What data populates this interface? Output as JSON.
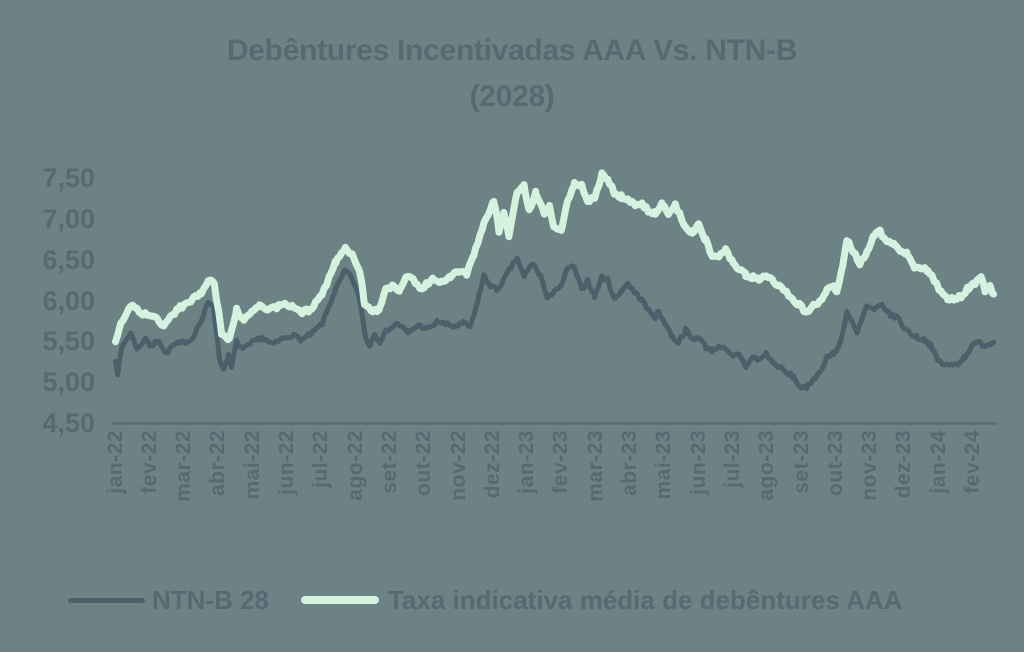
{
  "colors": {
    "background": "#6D8285",
    "text": "#576A74",
    "axis_line": "#5A6D76",
    "ntnb_line": "#4C5F6B",
    "aaa_line": "#D3F3DE"
  },
  "title": {
    "line1": "Debêntures Incentivadas AAA Vs. NTN-B",
    "line2": "(2028)"
  },
  "legend": {
    "items": [
      {
        "label": "NTN-B 28",
        "color": "#4C5F6B"
      },
      {
        "label": "Taxa indicativa média de debêntures AAA",
        "color": "#D3F3DE"
      }
    ]
  },
  "chart_data": {
    "type": "line",
    "title": "Debêntures Incentivadas AAA Vs. NTN-B (2028)",
    "xlabel": "",
    "ylabel": "",
    "grid": false,
    "legend_position": "bottom",
    "decimal_separator": ",",
    "ylim": [
      4.5,
      7.75
    ],
    "y_axis": {
      "ticks": [
        {
          "value": 7.5,
          "label": "7,50"
        },
        {
          "value": 7.0,
          "label": "7,00"
        },
        {
          "value": 6.5,
          "label": "6,50"
        },
        {
          "value": 6.0,
          "label": "6,00"
        },
        {
          "value": 5.5,
          "label": "5,50"
        },
        {
          "value": 5.0,
          "label": "5,00"
        },
        {
          "value": 4.5,
          "label": "4,50"
        }
      ]
    },
    "x_axis": {
      "tick_labels": [
        "jan-22",
        "fev-22",
        "mar-22",
        "abr-22",
        "mai-22",
        "jun-22",
        "jul-22",
        "ago-22",
        "set-22",
        "out-22",
        "nov-22",
        "dez-22",
        "jan-23",
        "fev-23",
        "mar-23",
        "abr-23",
        "mai-23",
        "jun-23",
        "jul-23",
        "ago-23",
        "set-23",
        "out-23",
        "nov-23",
        "dez-23",
        "jan-24",
        "fev-24"
      ]
    },
    "render": {
      "noise_amplitude": 0.025,
      "noise_seed": 7,
      "samples_per_month": 16
    },
    "series": [
      {
        "id": "ntnb",
        "name": "NTN-B 28",
        "color": "#4C5F6B",
        "width": 5,
        "points": [
          [
            0,
            5.28
          ],
          [
            0.06,
            5.11
          ],
          [
            0.2,
            5.45
          ],
          [
            0.44,
            5.6
          ],
          [
            0.65,
            5.4
          ],
          [
            0.88,
            5.55
          ],
          [
            1.03,
            5.43
          ],
          [
            1.26,
            5.52
          ],
          [
            1.47,
            5.35
          ],
          [
            1.68,
            5.45
          ],
          [
            1.91,
            5.48
          ],
          [
            2.2,
            5.52
          ],
          [
            2.5,
            5.75
          ],
          [
            2.7,
            5.97
          ],
          [
            2.85,
            5.95
          ],
          [
            3.03,
            5.3
          ],
          [
            3.15,
            5.15
          ],
          [
            3.29,
            5.33
          ],
          [
            3.38,
            5.18
          ],
          [
            3.53,
            5.49
          ],
          [
            3.73,
            5.4
          ],
          [
            3.97,
            5.48
          ],
          [
            4.26,
            5.55
          ],
          [
            4.56,
            5.46
          ],
          [
            4.85,
            5.53
          ],
          [
            5.15,
            5.58
          ],
          [
            5.44,
            5.52
          ],
          [
            5.74,
            5.6
          ],
          [
            6.03,
            5.72
          ],
          [
            6.41,
            6.13
          ],
          [
            6.7,
            6.37
          ],
          [
            6.9,
            6.27
          ],
          [
            7.12,
            6.01
          ],
          [
            7.29,
            5.55
          ],
          [
            7.41,
            5.45
          ],
          [
            7.56,
            5.6
          ],
          [
            7.7,
            5.5
          ],
          [
            7.94,
            5.65
          ],
          [
            8.24,
            5.72
          ],
          [
            8.53,
            5.6
          ],
          [
            8.82,
            5.7
          ],
          [
            9.12,
            5.65
          ],
          [
            9.41,
            5.75
          ],
          [
            9.56,
            5.72
          ],
          [
            9.85,
            5.68
          ],
          [
            10.15,
            5.72
          ],
          [
            10.35,
            5.68
          ],
          [
            10.44,
            5.8
          ],
          [
            10.59,
            6.05
          ],
          [
            10.74,
            6.3
          ],
          [
            10.94,
            6.18
          ],
          [
            11.12,
            6.13
          ],
          [
            11.32,
            6.25
          ],
          [
            11.47,
            6.37
          ],
          [
            11.71,
            6.52
          ],
          [
            11.91,
            6.29
          ],
          [
            12.15,
            6.46
          ],
          [
            12.41,
            6.29
          ],
          [
            12.59,
            6.01
          ],
          [
            12.79,
            6.13
          ],
          [
            13.0,
            6.17
          ],
          [
            13.18,
            6.41
          ],
          [
            13.38,
            6.4
          ],
          [
            13.59,
            6.13
          ],
          [
            13.76,
            6.25
          ],
          [
            13.97,
            6.05
          ],
          [
            14.18,
            6.29
          ],
          [
            14.35,
            6.25
          ],
          [
            14.56,
            6.01
          ],
          [
            14.76,
            6.13
          ],
          [
            14.94,
            6.21
          ],
          [
            15.15,
            6.09
          ],
          [
            15.35,
            6.01
          ],
          [
            15.53,
            5.88
          ],
          [
            15.74,
            5.8
          ],
          [
            15.83,
            5.86
          ],
          [
            16.03,
            5.72
          ],
          [
            16.24,
            5.55
          ],
          [
            16.41,
            5.49
          ],
          [
            16.62,
            5.64
          ],
          [
            16.82,
            5.52
          ],
          [
            17.0,
            5.56
          ],
          [
            17.21,
            5.43
          ],
          [
            17.41,
            5.39
          ],
          [
            17.59,
            5.45
          ],
          [
            17.79,
            5.39
          ],
          [
            18.0,
            5.31
          ],
          [
            18.18,
            5.35
          ],
          [
            18.38,
            5.19
          ],
          [
            18.59,
            5.31
          ],
          [
            18.76,
            5.27
          ],
          [
            18.97,
            5.35
          ],
          [
            19.18,
            5.23
          ],
          [
            19.35,
            5.19
          ],
          [
            19.56,
            5.11
          ],
          [
            19.76,
            5.07
          ],
          [
            19.94,
            4.95
          ],
          [
            20.15,
            4.92
          ],
          [
            20.35,
            5.05
          ],
          [
            20.53,
            5.11
          ],
          [
            20.74,
            5.31
          ],
          [
            20.94,
            5.35
          ],
          [
            21.03,
            5.38
          ],
          [
            21.2,
            5.6
          ],
          [
            21.32,
            5.86
          ],
          [
            21.62,
            5.6
          ],
          [
            21.9,
            5.93
          ],
          [
            22.12,
            5.88
          ],
          [
            22.35,
            5.95
          ],
          [
            22.59,
            5.82
          ],
          [
            22.79,
            5.8
          ],
          [
            23.0,
            5.66
          ],
          [
            23.18,
            5.6
          ],
          [
            23.38,
            5.55
          ],
          [
            23.59,
            5.52
          ],
          [
            23.76,
            5.45
          ],
          [
            23.97,
            5.27
          ],
          [
            24.18,
            5.21
          ],
          [
            24.35,
            5.21
          ],
          [
            24.56,
            5.23
          ],
          [
            24.76,
            5.31
          ],
          [
            24.94,
            5.43
          ],
          [
            25.15,
            5.49
          ],
          [
            25.35,
            5.45
          ],
          [
            25.5,
            5.47
          ],
          [
            25.6,
            5.49
          ]
        ]
      },
      {
        "id": "aaa",
        "name": "Taxa indicativa média de debêntures AAA",
        "color": "#D3F3DE",
        "width": 7,
        "points": [
          [
            0,
            5.5
          ],
          [
            0.15,
            5.7
          ],
          [
            0.44,
            5.95
          ],
          [
            0.74,
            5.85
          ],
          [
            1.03,
            5.82
          ],
          [
            1.41,
            5.7
          ],
          [
            1.82,
            5.9
          ],
          [
            2.21,
            6.0
          ],
          [
            2.5,
            6.1
          ],
          [
            2.7,
            6.25
          ],
          [
            2.88,
            6.22
          ],
          [
            3.09,
            5.6
          ],
          [
            3.32,
            5.52
          ],
          [
            3.53,
            5.9
          ],
          [
            3.74,
            5.75
          ],
          [
            3.97,
            5.85
          ],
          [
            4.2,
            5.95
          ],
          [
            4.44,
            5.88
          ],
          [
            4.7,
            5.92
          ],
          [
            4.94,
            5.95
          ],
          [
            5.15,
            5.94
          ],
          [
            5.44,
            5.86
          ],
          [
            5.65,
            5.88
          ],
          [
            6.03,
            6.09
          ],
          [
            6.41,
            6.46
          ],
          [
            6.7,
            6.65
          ],
          [
            6.9,
            6.55
          ],
          [
            7.12,
            6.37
          ],
          [
            7.26,
            5.97
          ],
          [
            7.5,
            5.86
          ],
          [
            7.7,
            5.9
          ],
          [
            7.88,
            6.13
          ],
          [
            8.09,
            6.18
          ],
          [
            8.29,
            6.12
          ],
          [
            8.47,
            6.31
          ],
          [
            8.68,
            6.25
          ],
          [
            8.88,
            6.13
          ],
          [
            9.06,
            6.2
          ],
          [
            9.26,
            6.27
          ],
          [
            9.56,
            6.21
          ],
          [
            9.76,
            6.3
          ],
          [
            9.94,
            6.37
          ],
          [
            10.24,
            6.33
          ],
          [
            10.44,
            6.55
          ],
          [
            10.74,
            6.95
          ],
          [
            11.03,
            7.23
          ],
          [
            11.18,
            6.86
          ],
          [
            11.32,
            7.06
          ],
          [
            11.47,
            6.8
          ],
          [
            11.71,
            7.35
          ],
          [
            11.91,
            7.41
          ],
          [
            12.06,
            7.1
          ],
          [
            12.26,
            7.33
          ],
          [
            12.5,
            7.06
          ],
          [
            12.65,
            7.15
          ],
          [
            12.79,
            6.9
          ],
          [
            13.0,
            6.88
          ],
          [
            13.18,
            7.23
          ],
          [
            13.38,
            7.43
          ],
          [
            13.59,
            7.41
          ],
          [
            13.76,
            7.23
          ],
          [
            13.97,
            7.25
          ],
          [
            14.18,
            7.55
          ],
          [
            14.35,
            7.48
          ],
          [
            14.56,
            7.31
          ],
          [
            14.76,
            7.27
          ],
          [
            14.94,
            7.23
          ],
          [
            15.15,
            7.17
          ],
          [
            15.35,
            7.19
          ],
          [
            15.53,
            7.1
          ],
          [
            15.74,
            7.08
          ],
          [
            15.94,
            7.18
          ],
          [
            16.12,
            7.06
          ],
          [
            16.32,
            7.17
          ],
          [
            16.62,
            6.9
          ],
          [
            16.82,
            6.84
          ],
          [
            17.0,
            6.92
          ],
          [
            17.21,
            6.74
          ],
          [
            17.41,
            6.53
          ],
          [
            17.59,
            6.56
          ],
          [
            17.79,
            6.62
          ],
          [
            18.0,
            6.46
          ],
          [
            18.18,
            6.4
          ],
          [
            18.38,
            6.31
          ],
          [
            18.59,
            6.29
          ],
          [
            18.76,
            6.27
          ],
          [
            18.97,
            6.31
          ],
          [
            19.18,
            6.23
          ],
          [
            19.35,
            6.17
          ],
          [
            19.56,
            6.09
          ],
          [
            19.76,
            6.01
          ],
          [
            19.94,
            5.95
          ],
          [
            20.15,
            5.85
          ],
          [
            20.35,
            5.93
          ],
          [
            20.53,
            5.99
          ],
          [
            20.74,
            6.13
          ],
          [
            20.94,
            6.17
          ],
          [
            21.03,
            6.12
          ],
          [
            21.2,
            6.45
          ],
          [
            21.32,
            6.74
          ],
          [
            21.7,
            6.46
          ],
          [
            21.9,
            6.58
          ],
          [
            22.12,
            6.8
          ],
          [
            22.29,
            6.84
          ],
          [
            22.5,
            6.72
          ],
          [
            22.7,
            6.7
          ],
          [
            22.88,
            6.62
          ],
          [
            23.09,
            6.58
          ],
          [
            23.29,
            6.41
          ],
          [
            23.47,
            6.4
          ],
          [
            23.68,
            6.37
          ],
          [
            23.88,
            6.25
          ],
          [
            24.06,
            6.11
          ],
          [
            24.26,
            6.03
          ],
          [
            24.47,
            6.03
          ],
          [
            24.65,
            6.05
          ],
          [
            24.85,
            6.15
          ],
          [
            25.06,
            6.21
          ],
          [
            25.24,
            6.27
          ],
          [
            25.35,
            6.13
          ],
          [
            25.5,
            6.17
          ],
          [
            25.6,
            6.08
          ]
        ]
      }
    ]
  }
}
